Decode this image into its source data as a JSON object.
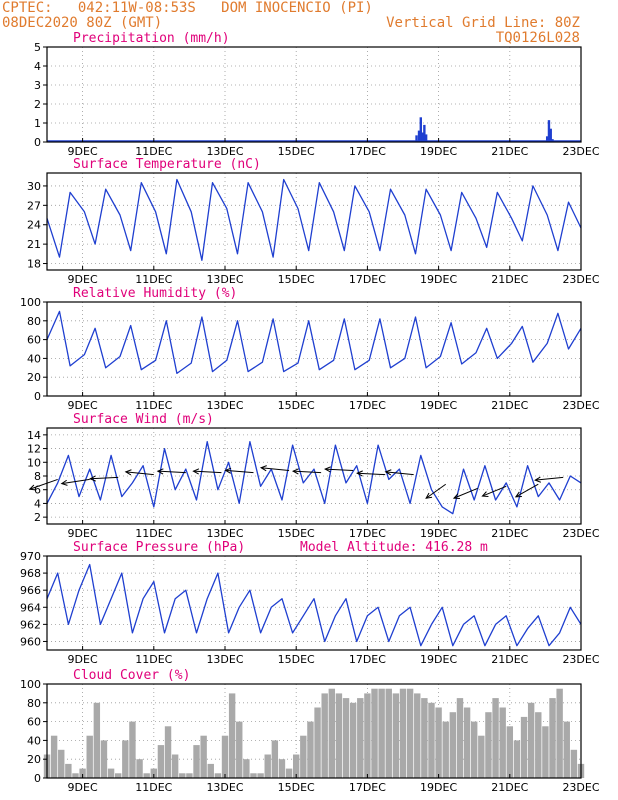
{
  "header": {
    "line1_left": "CPTEC:   042:11W-08:53S   DOM INOCENCIO (PI)",
    "line2_left": "08DEC2020 80Z (GMT)",
    "line2_right": "Vertical Grid Line: 80Z",
    "line3_right": "TQ0126L028"
  },
  "colors": {
    "header": "#e07b2e",
    "title": "#e0007a",
    "series": "#1f3fd0",
    "cloud": "#a9a9a9",
    "arrow": "#000000",
    "grid": "#9a9a9a"
  },
  "x_axis": {
    "ticks": [
      "9DEC",
      "11DEC",
      "13DEC",
      "15DEC",
      "17DEC",
      "19DEC",
      "21DEC",
      "23DEC"
    ],
    "tick_days": [
      9,
      11,
      13,
      15,
      17,
      19,
      21,
      23
    ],
    "range_days": [
      8.0,
      23.0
    ]
  },
  "chart_data": [
    {
      "id": "precip",
      "type": "bar",
      "title": "Precipitation (mm/h)",
      "ylim": [
        0,
        5
      ],
      "yticks": [
        0,
        1,
        2,
        3,
        4,
        5
      ],
      "x_day": [
        18.38,
        18.45,
        18.5,
        18.55,
        18.6,
        18.65,
        21.6,
        21.7,
        22.05,
        22.1,
        22.15,
        22.2
      ],
      "values": [
        0.35,
        0.6,
        1.3,
        0.5,
        0.9,
        0.4,
        0.05,
        0.05,
        0.3,
        1.15,
        0.7,
        0.15
      ],
      "baseline_line": true
    },
    {
      "id": "temp",
      "type": "line",
      "title": "Surface Temperature (nC)",
      "ylim": [
        17,
        32
      ],
      "yticks": [
        18,
        21,
        24,
        27,
        30
      ],
      "x_day": [
        8.0,
        8.35,
        8.65,
        9.05,
        9.35,
        9.65,
        10.05,
        10.35,
        10.65,
        11.05,
        11.35,
        11.65,
        12.05,
        12.35,
        12.65,
        13.05,
        13.35,
        13.65,
        14.05,
        14.35,
        14.65,
        15.05,
        15.35,
        15.65,
        16.05,
        16.35,
        16.65,
        17.05,
        17.35,
        17.65,
        18.05,
        18.35,
        18.65,
        19.05,
        19.35,
        19.65,
        20.05,
        20.35,
        20.65,
        21.05,
        21.35,
        21.65,
        22.05,
        22.35,
        22.65,
        23.0
      ],
      "values": [
        25,
        19,
        29,
        26,
        21,
        29.5,
        25.5,
        20,
        30.5,
        26,
        19.5,
        31,
        26,
        18.5,
        30.5,
        26.5,
        19.5,
        30.5,
        26,
        19,
        31,
        26.5,
        20,
        30.5,
        26,
        20,
        30,
        26,
        20,
        29.5,
        25.5,
        19.5,
        29.5,
        25.5,
        20,
        29,
        25,
        20.5,
        29,
        25,
        21.5,
        30,
        25.5,
        20,
        27.5,
        23.5
      ]
    },
    {
      "id": "rh",
      "type": "line",
      "title": "Relative Humidity (%)",
      "ylim": [
        0,
        100
      ],
      "yticks": [
        0,
        20,
        40,
        60,
        80,
        100
      ],
      "x_day": [
        8.0,
        8.35,
        8.65,
        9.05,
        9.35,
        9.65,
        10.05,
        10.35,
        10.65,
        11.05,
        11.35,
        11.65,
        12.05,
        12.35,
        12.65,
        13.05,
        13.35,
        13.65,
        14.05,
        14.35,
        14.65,
        15.05,
        15.35,
        15.65,
        16.05,
        16.35,
        16.65,
        17.05,
        17.35,
        17.65,
        18.05,
        18.35,
        18.65,
        19.05,
        19.35,
        19.65,
        20.05,
        20.35,
        20.65,
        21.05,
        21.35,
        21.65,
        22.05,
        22.35,
        22.65,
        23.0
      ],
      "values": [
        60,
        90,
        32,
        44,
        72,
        30,
        42,
        75,
        28,
        38,
        80,
        24,
        35,
        84,
        26,
        38,
        80,
        26,
        36,
        82,
        26,
        35,
        80,
        28,
        38,
        82,
        28,
        38,
        82,
        30,
        40,
        84,
        30,
        42,
        78,
        34,
        46,
        72,
        40,
        56,
        74,
        36,
        56,
        88,
        50,
        72
      ]
    },
    {
      "id": "wind",
      "type": "line",
      "title": "Surface Wind (m/s)",
      "ylim": [
        1,
        15
      ],
      "yticks": [
        2,
        4,
        6,
        8,
        10,
        12,
        14
      ],
      "x_day": [
        8.0,
        8.3,
        8.6,
        8.9,
        9.2,
        9.5,
        9.8,
        10.1,
        10.4,
        10.7,
        11.0,
        11.3,
        11.6,
        11.9,
        12.2,
        12.5,
        12.8,
        13.1,
        13.4,
        13.7,
        14.0,
        14.3,
        14.6,
        14.9,
        15.2,
        15.5,
        15.8,
        16.1,
        16.4,
        16.7,
        17.0,
        17.3,
        17.6,
        17.9,
        18.2,
        18.5,
        18.8,
        19.1,
        19.4,
        19.7,
        20.0,
        20.3,
        20.6,
        20.9,
        21.2,
        21.5,
        21.8,
        22.1,
        22.4,
        22.7,
        23.0
      ],
      "values": [
        4,
        7,
        11,
        5,
        9,
        4.5,
        11,
        5,
        7,
        9.5,
        3.5,
        12,
        6,
        9,
        4.5,
        13,
        6,
        10,
        4,
        13,
        6.5,
        9,
        4.5,
        12.5,
        7,
        9,
        4,
        12.5,
        7,
        9.5,
        4,
        12.5,
        7.5,
        9,
        4,
        11,
        6,
        3.5,
        2.5,
        9,
        4.5,
        9.5,
        4.5,
        7,
        3.5,
        9.5,
        5,
        7,
        4.5,
        8,
        7
      ],
      "arrows": {
        "x_day": [
          8.3,
          9.2,
          10.0,
          11.0,
          11.9,
          12.9,
          13.8,
          14.8,
          15.7,
          16.6,
          17.5,
          18.3,
          19.2,
          20.1,
          20.9,
          21.8,
          22.5
        ],
        "speed": [
          7.5,
          7.5,
          7.8,
          8.2,
          8.5,
          8.5,
          8.5,
          8.8,
          8.5,
          8.8,
          8.2,
          8.2,
          6.8,
          6.2,
          6.5,
          6.8,
          7.8
        ],
        "dx": [
          -1,
          -1,
          -1,
          -1,
          -1,
          -1,
          -1,
          -1,
          -1,
          -1,
          -1,
          -1,
          -0.7,
          -0.85,
          -0.85,
          -0.8,
          -1
        ],
        "dy": [
          -0.35,
          -0.15,
          -0.05,
          0.1,
          0.05,
          0.05,
          0.08,
          0.1,
          0.05,
          0.05,
          0.05,
          0.1,
          -0.5,
          -0.35,
          -0.35,
          -0.45,
          -0.1
        ]
      }
    },
    {
      "id": "pressure",
      "type": "line",
      "title": "Surface Pressure (hPa)",
      "annotation": "Model Altitude: 416.28 m",
      "ylim": [
        959,
        970
      ],
      "yticks": [
        960,
        962,
        964,
        966,
        968,
        970
      ],
      "x_day": [
        8.0,
        8.3,
        8.6,
        8.9,
        9.2,
        9.5,
        9.8,
        10.1,
        10.4,
        10.7,
        11.0,
        11.3,
        11.6,
        11.9,
        12.2,
        12.5,
        12.8,
        13.1,
        13.4,
        13.7,
        14.0,
        14.3,
        14.6,
        14.9,
        15.2,
        15.5,
        15.8,
        16.1,
        16.4,
        16.7,
        17.0,
        17.3,
        17.6,
        17.9,
        18.2,
        18.5,
        18.8,
        19.1,
        19.4,
        19.7,
        20.0,
        20.3,
        20.6,
        20.9,
        21.2,
        21.5,
        21.8,
        22.1,
        22.4,
        22.7,
        23.0
      ],
      "values": [
        965,
        968,
        962,
        966,
        969,
        962,
        965,
        968,
        961,
        965,
        967,
        961,
        965,
        966,
        961,
        965,
        968,
        961,
        964,
        966,
        961,
        964,
        965,
        961,
        963,
        965,
        960,
        963,
        965,
        960,
        963,
        964,
        960,
        963,
        964,
        959.5,
        962,
        964,
        959.5,
        962,
        963,
        959.5,
        962,
        963,
        959.5,
        961.5,
        963,
        959.5,
        961,
        964,
        962
      ]
    },
    {
      "id": "cloud",
      "type": "area",
      "title": "Cloud Cover (%)",
      "ylim": [
        0,
        100
      ],
      "yticks": [
        0,
        20,
        40,
        60,
        80,
        100
      ],
      "x_day": [
        8.0,
        8.2,
        8.4,
        8.6,
        8.8,
        9.0,
        9.2,
        9.4,
        9.6,
        9.8,
        10.0,
        10.2,
        10.4,
        10.6,
        10.8,
        11.0,
        11.2,
        11.4,
        11.6,
        11.8,
        12.0,
        12.2,
        12.4,
        12.6,
        12.8,
        13.0,
        13.2,
        13.4,
        13.6,
        13.8,
        14.0,
        14.2,
        14.4,
        14.6,
        14.8,
        15.0,
        15.2,
        15.4,
        15.6,
        15.8,
        16.0,
        16.2,
        16.4,
        16.6,
        16.8,
        17.0,
        17.2,
        17.4,
        17.6,
        17.8,
        18.0,
        18.2,
        18.4,
        18.6,
        18.8,
        19.0,
        19.2,
        19.4,
        19.6,
        19.8,
        20.0,
        20.2,
        20.4,
        20.6,
        20.8,
        21.0,
        21.2,
        21.4,
        21.6,
        21.8,
        22.0,
        22.2,
        22.4,
        22.6,
        22.8,
        23.0
      ],
      "values": [
        25,
        45,
        30,
        15,
        5,
        10,
        45,
        80,
        40,
        10,
        5,
        40,
        60,
        20,
        5,
        10,
        35,
        55,
        25,
        5,
        5,
        35,
        45,
        15,
        5,
        45,
        90,
        60,
        20,
        5,
        5,
        25,
        40,
        20,
        10,
        25,
        45,
        60,
        75,
        90,
        95,
        90,
        85,
        80,
        85,
        90,
        95,
        95,
        95,
        90,
        95,
        95,
        90,
        85,
        80,
        75,
        60,
        70,
        85,
        75,
        60,
        45,
        70,
        85,
        75,
        55,
        40,
        65,
        80,
        70,
        55,
        85,
        95,
        60,
        30,
        15
      ]
    }
  ]
}
